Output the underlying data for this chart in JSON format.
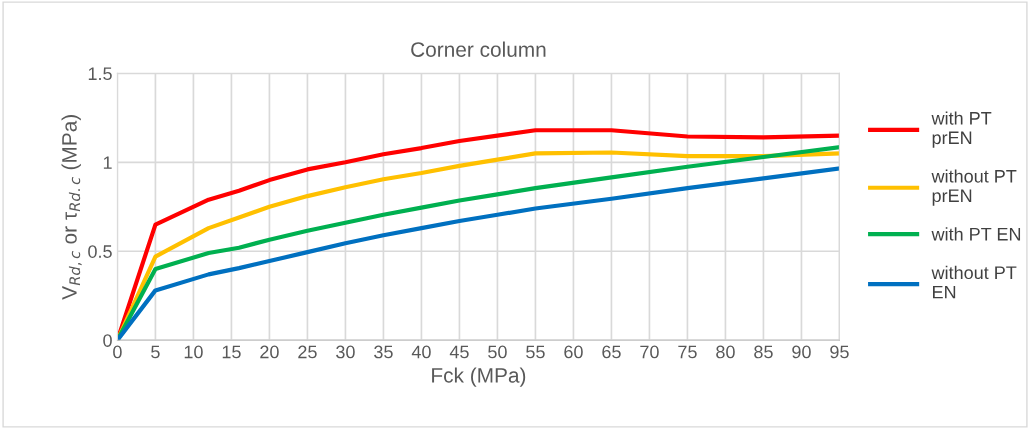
{
  "chart_data": {
    "type": "line",
    "title": "Corner column",
    "xlabel": "Fck (MPa)",
    "ylabel": "V$_{Rd,c}$ or τ$_{Rd.c}$ (MPa)",
    "x": [
      0,
      5,
      12,
      16,
      20,
      25,
      30,
      35,
      40,
      45,
      50,
      55,
      65,
      75,
      85,
      95
    ],
    "xlim": [
      0,
      95
    ],
    "xticks": [
      0,
      5,
      10,
      15,
      20,
      25,
      30,
      35,
      40,
      45,
      50,
      55,
      60,
      65,
      70,
      75,
      80,
      85,
      90,
      95
    ],
    "ylim": [
      0,
      1.5
    ],
    "yticks": [
      0,
      0.5,
      1,
      1.5
    ],
    "grid": true,
    "legend": "right",
    "marker": "none",
    "line_style": "solid",
    "series": [
      {
        "name": "with PT prEN",
        "color": "#ff0000",
        "values": [
          0,
          0.65,
          0.79,
          0.84,
          0.9,
          0.96,
          1.0,
          1.045,
          1.08,
          1.12,
          1.15,
          1.18,
          1.18,
          1.145,
          1.14,
          1.15
        ]
      },
      {
        "name": "without PT prEN",
        "color": "#ffc000",
        "values": [
          0,
          0.47,
          0.63,
          0.69,
          0.75,
          0.81,
          0.86,
          0.905,
          0.94,
          0.98,
          1.015,
          1.05,
          1.055,
          1.035,
          1.035,
          1.05
        ]
      },
      {
        "name": "with PT EN",
        "color": "#00b050",
        "values": [
          0,
          0.4,
          0.49,
          0.52,
          0.565,
          0.615,
          0.66,
          0.705,
          0.745,
          0.785,
          0.82,
          0.855,
          0.915,
          0.975,
          1.03,
          1.085
        ]
      },
      {
        "name": "without PT EN",
        "color": "#0070c0",
        "values": [
          0,
          0.28,
          0.37,
          0.405,
          0.445,
          0.495,
          0.545,
          0.59,
          0.63,
          0.67,
          0.705,
          0.74,
          0.795,
          0.855,
          0.91,
          0.965
        ]
      }
    ]
  }
}
